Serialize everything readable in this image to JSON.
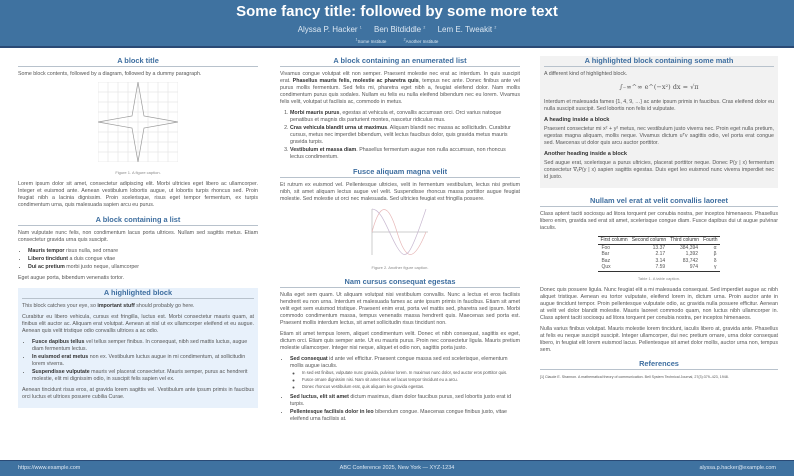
{
  "header": {
    "title": "Some fancy title: followed by some more text",
    "authors": [
      {
        "name": "Alyssa P. Hacker",
        "sup": "1"
      },
      {
        "name": "Ben Bitdiddle",
        "sup": "2"
      },
      {
        "name": "Lem E. Tweakit",
        "sup": "2"
      }
    ],
    "affiliations": [
      {
        "sup": "1",
        "name": "Some Institute"
      },
      {
        "sup": "2",
        "name": "Another Institute"
      }
    ]
  },
  "col1": {
    "b1": {
      "title": "A block title",
      "intro": "Some block contents, followed by a diagram, followed by a dummy paragraph.",
      "caption": "Figure 1. A figure caption.",
      "para": "Lorem ipsum dolor sit amet, consectetur adipiscing elit. Morbi ultricies eget libero ac ullamcorper. Integer et euismod ante. Aenean vestibulum lobortis augue, ut lobortis turpis rhoncus sed. Proin feugiat nibh a lacinia dignissim. Proin scelerisque, risus eget tempor fermentum, ex turpis condimentum urna, quis malesuada sapien arcu eu purus."
    },
    "b2": {
      "title": "A block containing a list",
      "intro": "Nam vulputate nunc felis, non condimentum lacus porta ultrices. Nullam sed sagittis metus. Etiam consectetur gravida urna quis suscipit.",
      "items": [
        {
          "b": "Mauris tempor",
          "t": " risus nulla, sed ornare"
        },
        {
          "b": "Libero tincidunt",
          "t": " a duis congue vitae"
        },
        {
          "b": "Dui ac pretium",
          "t": " morbi justo neque, ullamcorper"
        }
      ],
      "outro": "Eget augue porta, bibendum venenatis tortor."
    },
    "b3": {
      "title": "A highlighted block",
      "p1a": "This block catches your eye, so ",
      "p1b": "important stuff",
      "p1c": " should probably go here.",
      "p2": "Curabitur eu libero vehicula, cursus est fringilla, luctus est. Morbi consectetur mauris quam, at finibus elit auctor ac. Aliquam erat volutpat. Aenean at nisl ut ex ullamcorper eleifend et eu augue. Aenean quis velit tristique odio convallis ultrices a ac odio.",
      "items": [
        {
          "b": "Fusce dapibus tellus",
          "t": " vel tellus semper finibus. In consequat, nibh sed mattis luctus, augue diam fermentum lectus."
        },
        {
          "b": "In euismod erat metus",
          "t": " non ex. Vestibulum luctus augue in mi condimentum, at sollicitudin lorem viverra."
        },
        {
          "b": "Suspendisse vulputate",
          "t": " mauris vel placerat consectetur. Mauris semper, purus ac hendrerit molestie, elit mi dignissim odio, in suscipit felis sapien vel ex."
        }
      ],
      "p3": "Aenean tincidunt risus eros, at gravida lorem sagittis vel. Vestibulum ante ipsum primis in faucibus orci luctus et ultrices posuere cubilia Curae."
    }
  },
  "col2": {
    "b1": {
      "title": "A block containing an enumerated list",
      "pa": "Vivamus congue volutpat elit non semper. Praesent molestie nec erat ac interdum. In quis suscipit erat. ",
      "pb": "Phasellus mauris felis, molestie ac pharetra quis",
      "pc": ", tempus nec ante. Donec finibus ante vel purus mollis fermentum. Sed felis mi, pharetra eget nibh a, feugiat eleifend dolor. Nam mollis condimentum purus quis sodales. Nullam eu felis eu nulla eleifend bibendum nec eu lorem. Vivamus felis velit, volutpat ut facilisis ac, commodo in metus.",
      "items": [
        {
          "b": "Morbi mauris purus",
          "t": ", egestas at vehicula et, convallis accumsan orci. Orci varius natoque penatibus et magnis dis parturient montes, nascetur ridiculus mus."
        },
        {
          "b": "Cras vehicula blandit urna ut maximus",
          "t": ". Aliquam blandit nec massa ac sollicitudin. Curabitur cursus, metus nec imperdiet bibendum, velit lectus faucibus dolor, quis gravida metus mauris gravida turpis."
        },
        {
          "b": "Vestibulum et massa diam",
          "t": ". Phasellus fermentum augue non nulla accumsan, non rhoncus lectus condimentum."
        }
      ]
    },
    "b2": {
      "title": "Fusce aliquam magna velit",
      "para": "Et rutrum ex euismod vel. Pellentesque ultricies, velit in fermentum vestibulum, lectus nisi pretium nibh, sit amet aliquam lectus augue vel velit. Suspendisse rhoncus massa porttitor augue feugiat molestie. Sed molestie ut orci nec malesuada. Sed ultricies feugiat est fringilla posuere.",
      "caption": "Figure 2. Another figure caption."
    },
    "b3": {
      "title": "Nam cursus consequat egestas",
      "p1": "Nulla eget sem quam. Ut aliquam volutpat nisi vestibulum convallis. Nunc a lectus et eros facilisis hendrerit eu non urna. Interdum et malesuada fames ac ante ipsum primis in faucibus. Etiam sit amet velit eget sem euismod tristique. Praesent enim erat, porta vel mattis sed, pharetra sed ipsum. Morbi commodo condimentum massa, tempus venenatis massa hendrerit quis. Maecenas sed porta est. Praesent mollis interdum lectus, sit amet sollicitudin risus tincidunt non.",
      "p2": "Etiam sit amet tempus lorem, aliquet condimentum velit. Donec et nibh consequat, sagittis ex eget, dictum orci. Etiam quis semper ante. Ut eu mauris purus. Proin nec consectetur ligula. Mauris pretium molestie ullamcorper. Integer nisi neque, aliquet et odio non, sagittis porta justo.",
      "items": [
        {
          "b": "Sed consequat",
          "t": " id ante vel efficitur. Praesent congue massa sed est scelerisque, elementum mollis augue iaculis.",
          "sub": [
            "In sed est finibus, vulputate nunc gravida, pulvinar lorem. In maximus nunc dolor, sed auctor eros porttitor quis.",
            "Fusce ornare dignissim nisi. Nam sit amet risus vel lacus tempor tincidunt eu a arcu.",
            "Donec rhoncus vestibulum erat, quis aliquam leo gravida egestas."
          ]
        },
        {
          "b": "Sed luctus, elit sit amet",
          "t": " dictum maximus, diam dolor faucibus purus, sed lobortis justo erat id turpis."
        },
        {
          "b": "Pellentesque facilisis dolor in leo",
          "t": " bibendum congue. Maecenas congue finibus justo, vitae eleifend urna facilisis at."
        }
      ]
    }
  },
  "col3": {
    "b1": {
      "title": "A highlighted block containing some math",
      "intro": "A different kind of highlighted block.",
      "equation": "∫₋∞^∞ e^(−x²) dx = √π",
      "p1": "Interdum et malesuada fames {1, 4, 9, …} ac ante ipsum primis in faucibus. Cras eleifend dolor eu nulla suscipit suscipit. Sed lobortis non felis id vulputate.",
      "h1": "A heading inside a block",
      "p2": "Praesent consectetur mi x² + y² metus, nec vestibulum justo viverra nec. Proin eget nulla pretium, egestas magna aliquam, mollis neque. Vivamus dictum uᵀv sagittis odio, vel porta erat congue sed. Maecenas ut dolor quis arcu auctor porttitor.",
      "h2": "Another heading inside a block",
      "p3": "Sed augue erat, scelerisque a purus ultricies, placerat porttitor neque. Donec P(y | x) fermentum consectetur ∇ₓP(y | x) sapien sagittis egestas. Duis eget leo euismod nunc viverra imperdiet nec id justo."
    },
    "b2": {
      "title": "Nullam vel erat at velit convallis laoreet",
      "p1": "Class aptent taciti sociosqu ad litora torquent per conubia nostra, per inceptos himenaeos. Phasellus libero enim, gravida sed erat sit amet, scelerisque congue diam. Fusce dapibus dui ut augue pulvinar iaculis.",
      "table": {
        "headers": [
          "First column",
          "Second column",
          "Third column",
          "Fourth"
        ],
        "rows": [
          [
            "Foo",
            "13.37",
            "384,394",
            "α"
          ],
          [
            "Bar",
            "2.17",
            "1,392",
            "β"
          ],
          [
            "Baz",
            "3.14",
            "83,742",
            "δ"
          ],
          [
            "Qux",
            "7.59",
            "974",
            "γ"
          ]
        ]
      },
      "caption": "Table 1. A table caption.",
      "p2": "Donec quis posuere ligula. Nunc feugiat elit a mi malesuada consequat. Sed imperdiet augue ac nibh aliquet tristique. Aenean eu tortor vulputate, eleifend lorem in, dictum urna. Proin auctor ante in augue tincidunt tempor. Proin pellentesque vulputate odio, ac gravida nulla posuere efficitur. Aenean at velit vel dolor blandit molestie. Mauris laoreet commodo quam, non luctus nibh ullamcorper in. Class aptent taciti sociosqu ad litora torquent per conubia nostra, per inceptos himenaeos.",
      "p3": "Nulla varius finibus volutpat. Mauris molestie lorem tincidunt, iaculis libero at, gravida ante. Phasellus at felis eu neque suscipit suscipit. Integer ullamcorper, dui nec pretium ornare, urna dolor consequat libero, in feugiat elit lorem euismod lacus. Pellentesque sit amet dolor mollis, auctor urna non, tempus sem."
    },
    "refs": {
      "title": "References",
      "items": [
        "[1]  Claude E. Shannon. A mathematical theory of communication. Bell System Technical Journal, 27(3):379–423, 1948."
      ]
    }
  },
  "footer": {
    "left": "https://www.example.com",
    "center": "ABC Conference 2025, New York — XYZ-1234",
    "right": "alyssa.p.hacker@example.com"
  },
  "colors": {
    "header": "#3f72a0",
    "block_title": "#3f6fa0",
    "highlight": "#e8f1fb",
    "math_block": "#f2f2f2"
  }
}
